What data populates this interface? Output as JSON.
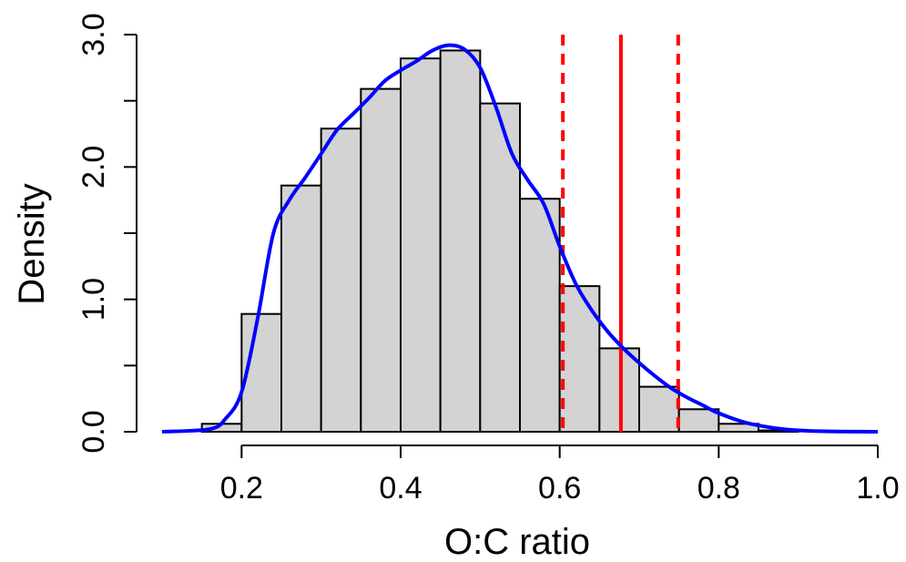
{
  "chart_data": {
    "type": "histogram",
    "title": "",
    "xlabel": "O:C ratio",
    "ylabel": "Density",
    "xlim": [
      0.1,
      1.0
    ],
    "ylim": [
      0,
      3.0
    ],
    "x_ticks": [
      "0.2",
      "0.4",
      "0.6",
      "0.8",
      "1.0"
    ],
    "y_ticks": [
      "0.0",
      "1.0",
      "2.0",
      "3.0"
    ],
    "bins": [
      {
        "x0": 0.15,
        "x1": 0.2,
        "density": 0.06
      },
      {
        "x0": 0.2,
        "x1": 0.25,
        "density": 0.89
      },
      {
        "x0": 0.25,
        "x1": 0.3,
        "density": 1.86
      },
      {
        "x0": 0.3,
        "x1": 0.35,
        "density": 2.29
      },
      {
        "x0": 0.35,
        "x1": 0.4,
        "density": 2.59
      },
      {
        "x0": 0.4,
        "x1": 0.45,
        "density": 2.82
      },
      {
        "x0": 0.45,
        "x1": 0.5,
        "density": 2.88
      },
      {
        "x0": 0.5,
        "x1": 0.55,
        "density": 2.48
      },
      {
        "x0": 0.55,
        "x1": 0.6,
        "density": 1.76
      },
      {
        "x0": 0.6,
        "x1": 0.65,
        "density": 1.1
      },
      {
        "x0": 0.65,
        "x1": 0.7,
        "density": 0.63
      },
      {
        "x0": 0.7,
        "x1": 0.75,
        "density": 0.34
      },
      {
        "x0": 0.75,
        "x1": 0.8,
        "density": 0.17
      },
      {
        "x0": 0.8,
        "x1": 0.85,
        "density": 0.06
      },
      {
        "x0": 0.85,
        "x1": 0.9,
        "density": 0.01
      }
    ],
    "density_curve": {
      "x": [
        0.1,
        0.16,
        0.18,
        0.2,
        0.22,
        0.24,
        0.26,
        0.28,
        0.3,
        0.32,
        0.34,
        0.36,
        0.38,
        0.4,
        0.42,
        0.44,
        0.46,
        0.48,
        0.5,
        0.52,
        0.54,
        0.56,
        0.58,
        0.6,
        0.62,
        0.64,
        0.66,
        0.68,
        0.7,
        0.72,
        0.74,
        0.76,
        0.78,
        0.8,
        0.84,
        0.9,
        1.0
      ],
      "y": [
        0.0,
        0.02,
        0.1,
        0.3,
        0.85,
        1.5,
        1.75,
        1.92,
        2.1,
        2.28,
        2.4,
        2.52,
        2.65,
        2.73,
        2.8,
        2.88,
        2.92,
        2.89,
        2.75,
        2.45,
        2.1,
        1.9,
        1.72,
        1.4,
        1.12,
        0.92,
        0.76,
        0.63,
        0.52,
        0.42,
        0.33,
        0.26,
        0.2,
        0.14,
        0.06,
        0.01,
        0.0
      ]
    },
    "vlines": [
      {
        "x": 0.604,
        "style": "dashed",
        "color": "#ff0000"
      },
      {
        "x": 0.677,
        "style": "solid",
        "color": "#ff0000"
      },
      {
        "x": 0.749,
        "style": "dashed",
        "color": "#ff0000"
      }
    ],
    "colors": {
      "bar_fill": "#d3d3d3",
      "bar_stroke": "#000000",
      "curve": "#0000ff",
      "axis": "#000000"
    }
  }
}
